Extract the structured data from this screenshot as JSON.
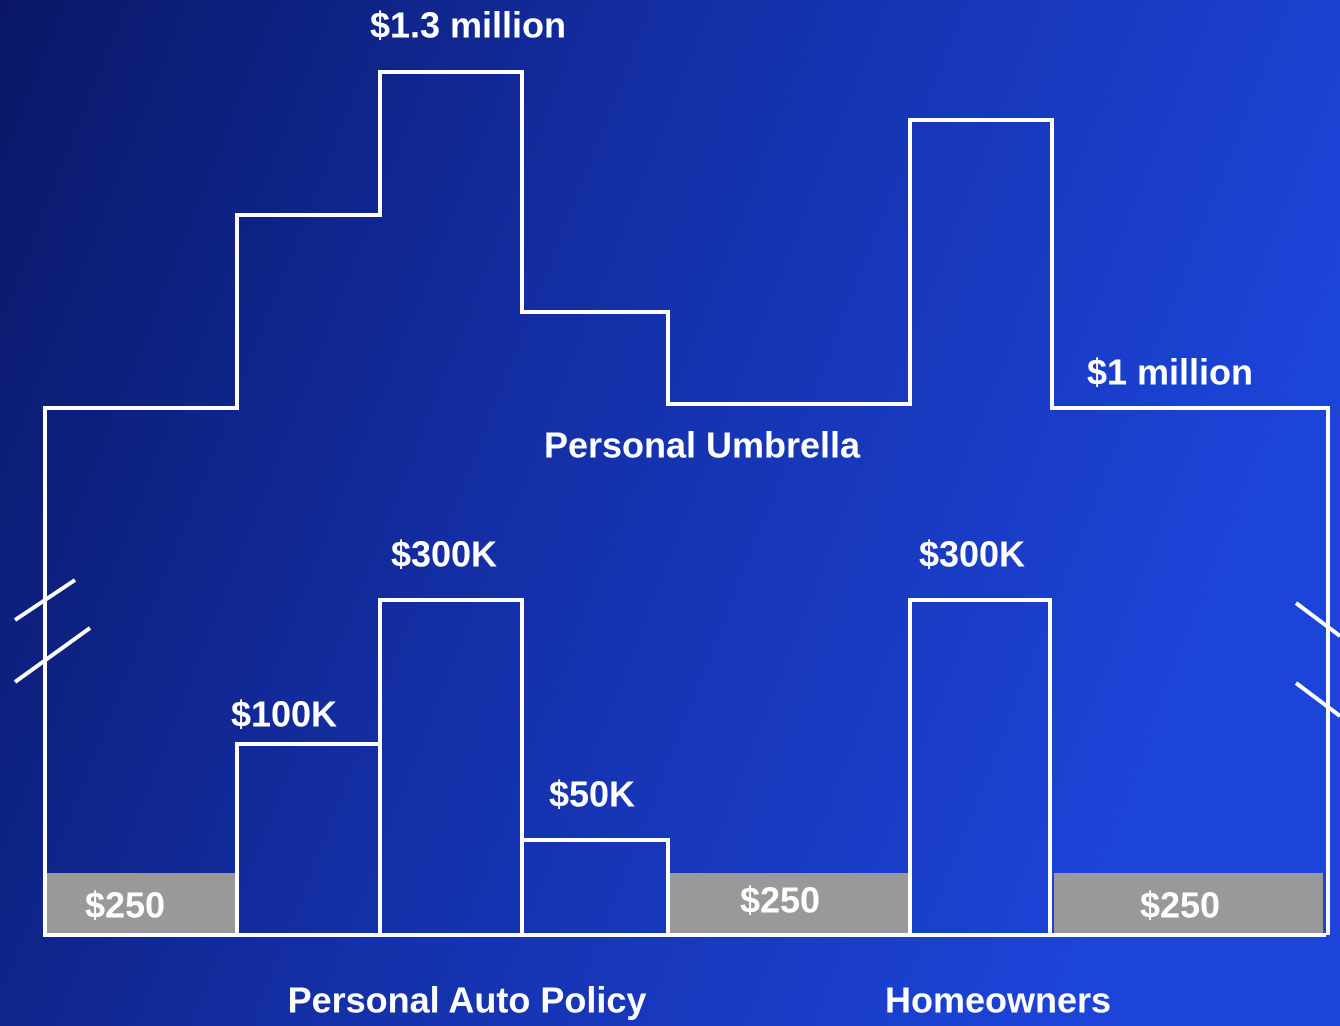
{
  "umbrella": {
    "title": "Personal Umbrella",
    "top_label": "$1.3 million",
    "right_label": "$1 million"
  },
  "auto": {
    "labels": [
      "$100K",
      "$300K",
      "$50K"
    ],
    "title": "Personal Auto Policy"
  },
  "homeowners": {
    "label": "$300K",
    "title": "Homeowners"
  },
  "deductibles": [
    "$250",
    "$250",
    "$250"
  ]
}
